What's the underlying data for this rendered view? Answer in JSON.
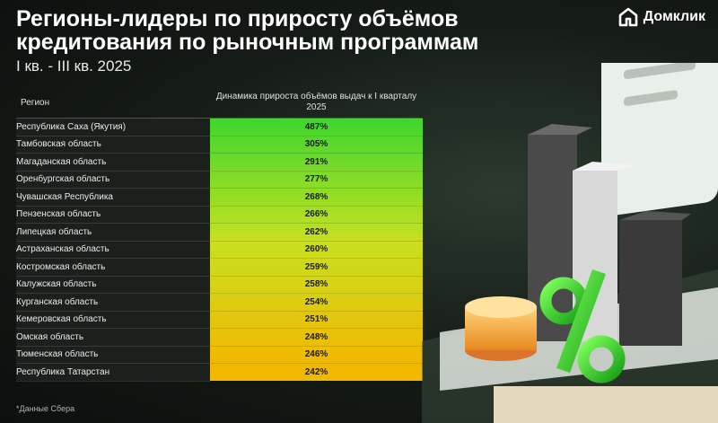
{
  "header": {
    "title": "Регионы-лидеры по приросту объёмов кредитования по рыночным программам",
    "subtitle": "I кв. - III кв. 2025"
  },
  "logo": {
    "text": "Домклик",
    "icon": "house-icon",
    "color": "#ffffff"
  },
  "chart_data": {
    "type": "table",
    "columns": [
      "Регион",
      "Динамика прироста объёмов выдач к I кварталу 2025"
    ],
    "categories": [
      "Республика Саха (Якутия)",
      "Тамбовская область",
      "Магаданская область",
      "Оренбургская область",
      "Чувашская Республика",
      "Пензенская область",
      "Липецкая область",
      "Астраханская область",
      "Костромская область",
      "Калужская область",
      "Курганская область",
      "Кемеровская область",
      "Омская область",
      "Тюменская область",
      "Республика Татарстан"
    ],
    "values": [
      487,
      305,
      291,
      277,
      268,
      266,
      262,
      260,
      259,
      258,
      254,
      251,
      248,
      246,
      242
    ],
    "value_labels": [
      "487%",
      "305%",
      "291%",
      "277%",
      "268%",
      "266%",
      "262%",
      "260%",
      "259%",
      "258%",
      "254%",
      "251%",
      "248%",
      "246%",
      "242%"
    ],
    "unit": "%",
    "color_scale": {
      "high": "#3fd62f",
      "mid": "#c8e020",
      "low": "#f2b800"
    }
  },
  "footnote": "*Данные Сбера",
  "colors": {
    "accent": "#3fd62f",
    "background": "#141a16"
  }
}
